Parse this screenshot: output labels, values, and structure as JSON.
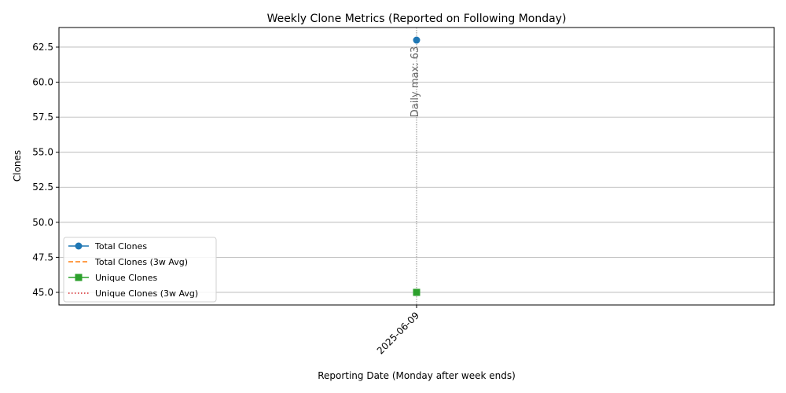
{
  "chart_data": {
    "type": "line",
    "title": "Weekly Clone Metrics (Reported on Following Monday)",
    "xlabel": "Reporting Date (Monday after week ends)",
    "ylabel": "Clones",
    "categories": [
      "2025-06-09"
    ],
    "ylim": [
      44.1,
      63.9
    ],
    "yticks": [
      45.0,
      47.5,
      50.0,
      52.5,
      55.0,
      57.5,
      60.0,
      62.5
    ],
    "ytick_labels": [
      "45.0",
      "47.5",
      "50.0",
      "52.5",
      "55.0",
      "57.5",
      "60.0",
      "62.5"
    ],
    "grid": "y",
    "legend_position": "lower-left",
    "series": [
      {
        "name": "Total Clones",
        "values": [
          63
        ],
        "color": "#1f77b4",
        "marker": "circle",
        "line": "solid"
      },
      {
        "name": "Total Clones (3w Avg)",
        "values": [
          63
        ],
        "color": "#ff7f0e",
        "marker": "none",
        "line": "dashed"
      },
      {
        "name": "Unique Clones",
        "values": [
          45
        ],
        "color": "#2ca02c",
        "marker": "square",
        "line": "solid"
      },
      {
        "name": "Unique Clones (3w Avg)",
        "values": [
          45
        ],
        "color": "#d62728",
        "marker": "none",
        "line": "dotted"
      }
    ],
    "annotation": {
      "text": "Daily max: 63",
      "category": "2025-06-09",
      "value": 63
    }
  }
}
